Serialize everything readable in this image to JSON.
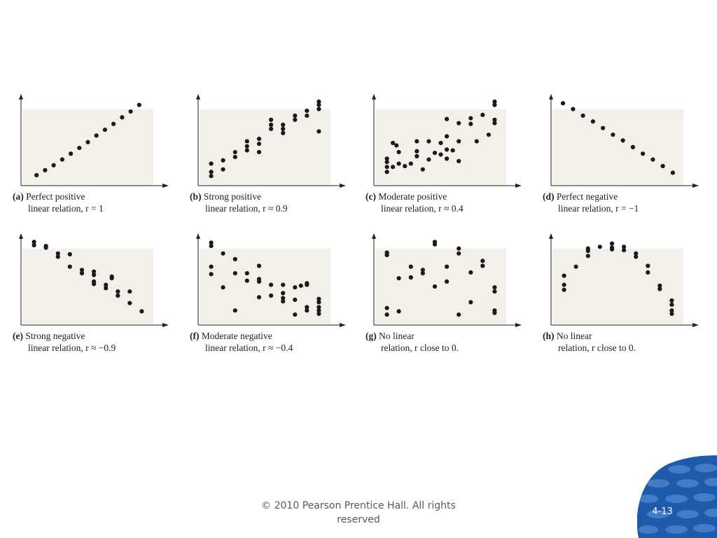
{
  "chart_data": [
    {
      "type": "scatter",
      "letter": "(a)",
      "caption_line1": "Perfect positive",
      "caption_line2": "linear relation, r = 1",
      "points": [
        [
          1,
          0.5
        ],
        [
          2,
          1.1
        ],
        [
          3,
          1.7
        ],
        [
          4,
          2.4
        ],
        [
          5,
          3.1
        ],
        [
          6,
          3.8
        ],
        [
          7,
          4.5
        ],
        [
          8,
          5.3
        ],
        [
          9,
          6.0
        ],
        [
          10,
          6.7
        ],
        [
          11,
          7.5
        ],
        [
          12,
          8.2
        ],
        [
          13,
          9.0
        ]
      ],
      "xlim": [
        0,
        14
      ],
      "ylim": [
        0,
        10
      ]
    },
    {
      "type": "scatter",
      "letter": "(b)",
      "caption_line1": "Strong positive",
      "caption_line2": "linear relation, r ≈ 0.9",
      "points": [
        [
          0.5,
          0.4
        ],
        [
          0.5,
          0.9
        ],
        [
          0.5,
          1.9
        ],
        [
          1.5,
          2.3
        ],
        [
          1.5,
          1.2
        ],
        [
          2.5,
          2.7
        ],
        [
          2.5,
          3.3
        ],
        [
          3.5,
          3.5
        ],
        [
          3.5,
          4.0
        ],
        [
          3.5,
          4.6
        ],
        [
          4.5,
          3.3
        ],
        [
          4.5,
          4.3
        ],
        [
          4.5,
          4.9
        ],
        [
          5.5,
          6.1
        ],
        [
          5.5,
          6.6
        ],
        [
          5.5,
          7.2
        ],
        [
          6.5,
          5.6
        ],
        [
          6.5,
          6.1
        ],
        [
          6.5,
          6.6
        ],
        [
          7.5,
          7.2
        ],
        [
          7.5,
          7.7
        ],
        [
          8.5,
          7.7
        ],
        [
          8.5,
          8.3
        ],
        [
          9.5,
          5.8
        ],
        [
          9.5,
          8.5
        ],
        [
          9.5,
          9.4
        ],
        [
          9.5,
          9.0
        ]
      ],
      "xlim": [
        0,
        10
      ],
      "ylim": [
        0,
        10
      ]
    },
    {
      "type": "scatter",
      "letter": "(c)",
      "caption_line1": "Moderate positive",
      "caption_line2": "linear relation, r ≈ 0.4",
      "points": [
        [
          0.5,
          0.9
        ],
        [
          0.5,
          1.5
        ],
        [
          0.5,
          2.1
        ],
        [
          0.5,
          2.5
        ],
        [
          1.0,
          1.5
        ],
        [
          1.0,
          4.4
        ],
        [
          1.3,
          4.1
        ],
        [
          1.5,
          3.3
        ],
        [
          1.5,
          1.9
        ],
        [
          2.0,
          1.6
        ],
        [
          2.5,
          1.9
        ],
        [
          3.0,
          2.8
        ],
        [
          3.0,
          3.4
        ],
        [
          3.0,
          4.6
        ],
        [
          3.5,
          1.2
        ],
        [
          4.0,
          2.4
        ],
        [
          4.0,
          4.6
        ],
        [
          4.5,
          3.2
        ],
        [
          5.0,
          3.0
        ],
        [
          5.0,
          4.4
        ],
        [
          5.5,
          2.5
        ],
        [
          5.5,
          3.6
        ],
        [
          5.5,
          5.2
        ],
        [
          5.5,
          7.3
        ],
        [
          6.0,
          3.5
        ],
        [
          6.5,
          2.2
        ],
        [
          6.5,
          4.6
        ],
        [
          6.5,
          6.8
        ],
        [
          7.5,
          6.7
        ],
        [
          7.5,
          7.4
        ],
        [
          8.0,
          4.6
        ],
        [
          8.5,
          7.8
        ],
        [
          9.0,
          5.4
        ],
        [
          9.5,
          6.8
        ],
        [
          9.5,
          7.2
        ],
        [
          9.5,
          9.0
        ],
        [
          9.5,
          9.4
        ]
      ],
      "xlim": [
        0,
        10
      ],
      "ylim": [
        0,
        10
      ]
    },
    {
      "type": "scatter",
      "letter": "(d)",
      "caption_line1": "Perfect negative",
      "caption_line2": "linear relation, r = −1",
      "points": [
        [
          0.5,
          9.2
        ],
        [
          1.5,
          8.5
        ],
        [
          2.5,
          7.7
        ],
        [
          3.5,
          7.0
        ],
        [
          4.5,
          6.2
        ],
        [
          5.5,
          5.4
        ],
        [
          6.5,
          4.7
        ],
        [
          7.5,
          3.9
        ],
        [
          8.5,
          3.1
        ],
        [
          9.5,
          2.4
        ],
        [
          10.5,
          1.6
        ],
        [
          11.5,
          0.8
        ]
      ],
      "xlim": [
        0,
        12
      ],
      "ylim": [
        0,
        10
      ]
    },
    {
      "type": "scatter",
      "letter": "(e)",
      "caption_line1": "Strong negative",
      "caption_line2": "linear relation, r ≈ −0.9",
      "points": [
        [
          0.5,
          8.9
        ],
        [
          0.5,
          9.3
        ],
        [
          1.5,
          8.6
        ],
        [
          1.5,
          8.8
        ],
        [
          2.5,
          7.5
        ],
        [
          2.5,
          7.9
        ],
        [
          3.5,
          6.3
        ],
        [
          3.5,
          7.8
        ],
        [
          4.5,
          5.9
        ],
        [
          4.5,
          5.5
        ],
        [
          5.5,
          5.7
        ],
        [
          5.5,
          5.3
        ],
        [
          5.5,
          4.2
        ],
        [
          5.5,
          4.5
        ],
        [
          6.5,
          3.7
        ],
        [
          6.5,
          4.1
        ],
        [
          7.0,
          4.9
        ],
        [
          7.0,
          5.1
        ],
        [
          7.5,
          3.3
        ],
        [
          7.5,
          2.8
        ],
        [
          8.5,
          3.3
        ],
        [
          8.5,
          1.9
        ],
        [
          9.5,
          0.9
        ]
      ],
      "xlim": [
        0,
        10
      ],
      "ylim": [
        0,
        10
      ]
    },
    {
      "type": "scatter",
      "letter": "(f)",
      "caption_line1": "Moderate negative",
      "caption_line2": "linear relation, r ≈ −0.4",
      "points": [
        [
          0.5,
          8.8
        ],
        [
          0.5,
          9.2
        ],
        [
          0.5,
          6.3
        ],
        [
          0.5,
          5.4
        ],
        [
          1.5,
          3.8
        ],
        [
          1.5,
          7.9
        ],
        [
          2.5,
          7.2
        ],
        [
          2.5,
          5.5
        ],
        [
          2.5,
          1.0
        ],
        [
          3.5,
          5.5
        ],
        [
          3.5,
          4.6
        ],
        [
          4.5,
          6.4
        ],
        [
          4.5,
          4.8
        ],
        [
          4.5,
          4.5
        ],
        [
          4.5,
          2.6
        ],
        [
          5.5,
          4.1
        ],
        [
          5.5,
          2.8
        ],
        [
          6.5,
          2.1
        ],
        [
          6.5,
          2.5
        ],
        [
          6.5,
          3.1
        ],
        [
          6.5,
          4.1
        ],
        [
          7.5,
          2.3
        ],
        [
          7.5,
          3.8
        ],
        [
          7.5,
          0.5
        ],
        [
          8.0,
          4.0
        ],
        [
          8.5,
          4.1
        ],
        [
          8.5,
          4.3
        ],
        [
          8.5,
          1.0
        ],
        [
          8.5,
          1.4
        ],
        [
          9.5,
          1.0
        ],
        [
          9.5,
          1.4
        ],
        [
          9.5,
          2.0
        ],
        [
          9.5,
          2.4
        ],
        [
          9.5,
          0.6
        ]
      ],
      "xlim": [
        0,
        10
      ],
      "ylim": [
        0,
        10
      ]
    },
    {
      "type": "scatter",
      "letter": "(g)",
      "caption_line1": "No linear",
      "caption_line2": "relation, r close to 0.",
      "points": [
        [
          0.5,
          7.7
        ],
        [
          0.5,
          8.0
        ],
        [
          0.5,
          0.5
        ],
        [
          0.5,
          1.3
        ],
        [
          1.5,
          4.9
        ],
        [
          1.5,
          0.9
        ],
        [
          2.5,
          5.0
        ],
        [
          2.5,
          6.3
        ],
        [
          3.5,
          5.9
        ],
        [
          3.5,
          5.5
        ],
        [
          4.5,
          9.3
        ],
        [
          4.5,
          9.0
        ],
        [
          4.5,
          3.9
        ],
        [
          5.5,
          6.3
        ],
        [
          5.5,
          4.5
        ],
        [
          6.5,
          8.5
        ],
        [
          6.5,
          7.9
        ],
        [
          6.5,
          0.5
        ],
        [
          7.5,
          5.6
        ],
        [
          7.5,
          2.0
        ],
        [
          8.5,
          6.4
        ],
        [
          8.5,
          7.0
        ],
        [
          9.5,
          3.3
        ],
        [
          9.5,
          3.8
        ],
        [
          9.5,
          0.7
        ],
        [
          9.5,
          1.0
        ]
      ],
      "xlim": [
        0,
        10
      ],
      "ylim": [
        0,
        10
      ]
    },
    {
      "type": "scatter",
      "letter": "(h)",
      "caption_line1": "No linear",
      "caption_line2": "relation, r close to 0.",
      "points": [
        [
          0.5,
          3.5
        ],
        [
          0.5,
          4.1
        ],
        [
          0.5,
          5.2
        ],
        [
          1.5,
          6.3
        ],
        [
          2.5,
          7.6
        ],
        [
          2.5,
          8.2
        ],
        [
          2.5,
          8.5
        ],
        [
          3.5,
          8.7
        ],
        [
          4.5,
          9.1
        ],
        [
          4.5,
          8.6
        ],
        [
          4.5,
          8.4
        ],
        [
          5.5,
          8.7
        ],
        [
          5.5,
          8.3
        ],
        [
          6.5,
          7.9
        ],
        [
          6.5,
          7.5
        ],
        [
          7.5,
          6.4
        ],
        [
          7.5,
          5.6
        ],
        [
          8.5,
          4.0
        ],
        [
          8.5,
          3.6
        ],
        [
          9.5,
          2.2
        ],
        [
          9.5,
          1.7
        ],
        [
          9.5,
          1.0
        ],
        [
          9.5,
          0.6
        ]
      ],
      "xlim": [
        0,
        10
      ],
      "ylim": [
        0,
        10
      ]
    }
  ],
  "footer": {
    "copyright_line1": "© 2010 Pearson Prentice Hall. All rights",
    "copyright_line2": "reserved"
  },
  "slide_number": "4-13",
  "colors": {
    "plot_background": "#f3f0ea",
    "point": "#1a1a1a",
    "badge": "#1f5bab"
  }
}
